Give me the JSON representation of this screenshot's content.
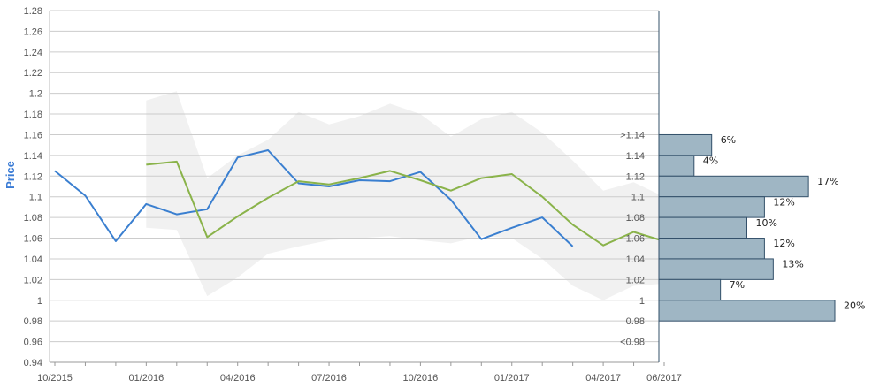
{
  "chart_data": {
    "type": "line",
    "ylabel": "Price",
    "ylim": [
      0.94,
      1.28
    ],
    "yticks": [
      "0.94",
      "0.96",
      "0.98",
      "1",
      "1.02",
      "1.04",
      "1.06",
      "1.08",
      "1.1",
      "1.12",
      "1.14",
      "1.16",
      "1.18",
      "1.2",
      "1.22",
      "1.24",
      "1.26",
      "1.28"
    ],
    "xticks": [
      {
        "label": "10/2015",
        "x": 0
      },
      {
        "label": "01/2016",
        "x": 3
      },
      {
        "label": "04/2016",
        "x": 6
      },
      {
        "label": "07/2016",
        "x": 9
      },
      {
        "label": "10/2016",
        "x": 12
      },
      {
        "label": "01/2017",
        "x": 15
      },
      {
        "label": "04/2017",
        "x": 18
      },
      {
        "label": "06/2017",
        "x": 20
      }
    ],
    "xlim": [
      0,
      20
    ],
    "colors": {
      "actual": "#3a7fd0",
      "forecast": "#8ab34a",
      "band": "#f1f1f1",
      "bars": "#9fb6c4",
      "bar_border": "#33506a",
      "grid": "#cccccc"
    },
    "series": [
      {
        "key": "actual",
        "values": [
          [
            0,
            1.125
          ],
          [
            1,
            1.101
          ],
          [
            2,
            1.057
          ],
          [
            3,
            1.093
          ],
          [
            4,
            1.083
          ],
          [
            5,
            1.088
          ],
          [
            6,
            1.138
          ],
          [
            7,
            1.145
          ],
          [
            8,
            1.113
          ],
          [
            9,
            1.11
          ],
          [
            10,
            1.116
          ],
          [
            11,
            1.115
          ],
          [
            12,
            1.124
          ],
          [
            13,
            1.097
          ],
          [
            14,
            1.059
          ],
          [
            15,
            1.07
          ],
          [
            16,
            1.08
          ],
          [
            17,
            1.052
          ]
        ]
      },
      {
        "key": "forecast",
        "values": [
          [
            3,
            1.131
          ],
          [
            4,
            1.134
          ],
          [
            5,
            1.061
          ],
          [
            6,
            1.081
          ],
          [
            7,
            1.099
          ],
          [
            8,
            1.115
          ],
          [
            9,
            1.112
          ],
          [
            10,
            1.118
          ],
          [
            11,
            1.125
          ],
          [
            12,
            1.116
          ],
          [
            13,
            1.106
          ],
          [
            14,
            1.118
          ],
          [
            15,
            1.122
          ],
          [
            16,
            1.1
          ],
          [
            17,
            1.073
          ],
          [
            18,
            1.053
          ],
          [
            19,
            1.066
          ],
          [
            20,
            1.057
          ]
        ]
      }
    ],
    "band": {
      "upper": [
        [
          3,
          1.193
        ],
        [
          4,
          1.202
        ],
        [
          5,
          1.118
        ],
        [
          6,
          1.14
        ],
        [
          7,
          1.155
        ],
        [
          8,
          1.182
        ],
        [
          9,
          1.17
        ],
        [
          10,
          1.178
        ],
        [
          11,
          1.19
        ],
        [
          12,
          1.18
        ],
        [
          13,
          1.158
        ],
        [
          14,
          1.175
        ],
        [
          15,
          1.182
        ],
        [
          16,
          1.162
        ],
        [
          17,
          1.135
        ],
        [
          18,
          1.106
        ],
        [
          19,
          1.114
        ],
        [
          20,
          1.1
        ]
      ],
      "lower": [
        [
          3,
          1.07
        ],
        [
          4,
          1.068
        ],
        [
          5,
          1.004
        ],
        [
          6,
          1.022
        ],
        [
          7,
          1.045
        ],
        [
          8,
          1.052
        ],
        [
          9,
          1.058
        ],
        [
          10,
          1.06
        ],
        [
          11,
          1.062
        ],
        [
          12,
          1.058
        ],
        [
          13,
          1.055
        ],
        [
          14,
          1.062
        ],
        [
          15,
          1.06
        ],
        [
          16,
          1.04
        ],
        [
          17,
          1.014
        ],
        [
          18,
          1.0
        ],
        [
          19,
          1.014
        ],
        [
          20,
          1.016
        ]
      ]
    },
    "distribution": [
      {
        "label": ">1.14",
        "low": 1.14,
        "high": 1.16,
        "percent": 6,
        "percent_label": "6%"
      },
      {
        "label": "1.14",
        "low": 1.12,
        "high": 1.14,
        "percent": 4,
        "percent_label": "4%"
      },
      {
        "label": "1.12",
        "low": 1.1,
        "high": 1.12,
        "percent": 17,
        "percent_label": "17%"
      },
      {
        "label": "1.1",
        "low": 1.08,
        "high": 1.1,
        "percent": 12,
        "percent_label": "12%"
      },
      {
        "label": "1.08",
        "low": 1.06,
        "high": 1.08,
        "percent": 10,
        "percent_label": "10%"
      },
      {
        "label": "1.06",
        "low": 1.04,
        "high": 1.06,
        "percent": 12,
        "percent_label": "12%"
      },
      {
        "label": "1.04",
        "low": 1.02,
        "high": 1.04,
        "percent": 13,
        "percent_label": "13%"
      },
      {
        "label": "1.02",
        "low": 1.0,
        "high": 1.02,
        "percent": 7,
        "percent_label": "7%"
      },
      {
        "label": "1",
        "low": 0.98,
        "high": 1.0,
        "percent": 20,
        "percent_label": "20%"
      },
      {
        "label": "0.98",
        "low": 0.96,
        "high": 0.98,
        "percent": null,
        "percent_label": ""
      },
      {
        "label": "<0.98",
        "low": 0.94,
        "high": 0.96,
        "percent": null,
        "percent_label": ""
      }
    ]
  }
}
